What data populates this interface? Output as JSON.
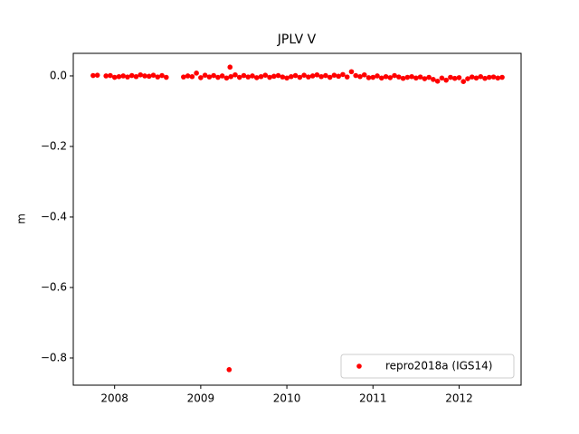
{
  "chart_data": {
    "type": "scatter",
    "title": "JPLV V",
    "y_label": "m",
    "x": [
      2007.75,
      2007.8,
      2007.9,
      2007.95,
      2008.0,
      2008.05,
      2008.1,
      2008.15,
      2008.2,
      2008.25,
      2008.3,
      2008.35,
      2008.4,
      2008.45,
      2008.5,
      2008.55,
      2008.6,
      2008.8,
      2008.85,
      2008.9,
      2008.95,
      2009.0,
      2009.05,
      2009.1,
      2009.15,
      2009.2,
      2009.25,
      2009.3,
      2009.33,
      2009.34,
      2009.35,
      2009.4,
      2009.45,
      2009.5,
      2009.55,
      2009.6,
      2009.65,
      2009.7,
      2009.75,
      2009.8,
      2009.85,
      2009.9,
      2009.95,
      2010.0,
      2010.05,
      2010.1,
      2010.15,
      2010.2,
      2010.25,
      2010.3,
      2010.35,
      2010.4,
      2010.45,
      2010.5,
      2010.55,
      2010.6,
      2010.65,
      2010.7,
      2010.75,
      2010.8,
      2010.85,
      2010.9,
      2010.95,
      2011.0,
      2011.05,
      2011.1,
      2011.15,
      2011.2,
      2011.25,
      2011.3,
      2011.35,
      2011.4,
      2011.45,
      2011.5,
      2011.55,
      2011.6,
      2011.65,
      2011.7,
      2011.75,
      2011.8,
      2011.85,
      2011.9,
      2011.95,
      2012.0,
      2012.05,
      2012.1,
      2012.15,
      2012.2,
      2012.25,
      2012.3,
      2012.35,
      2012.4,
      2012.45,
      2012.5
    ],
    "series": [
      {
        "name": "repro2018a (IGS14)",
        "color": "#ff0000",
        "values": [
          0.001,
          0.002,
          0.0,
          0.001,
          -0.004,
          -0.002,
          0.0,
          -0.003,
          0.001,
          -0.002,
          0.003,
          0.0,
          -0.001,
          0.002,
          -0.003,
          0.001,
          -0.004,
          -0.003,
          0.0,
          -0.002,
          0.008,
          -0.005,
          0.002,
          -0.003,
          0.001,
          -0.004,
          0.0,
          -0.006,
          -0.833,
          0.025,
          -0.002,
          0.003,
          -0.004,
          0.001,
          -0.003,
          0.0,
          -0.005,
          -0.002,
          0.002,
          -0.004,
          -0.001,
          0.001,
          -0.003,
          -0.006,
          -0.002,
          0.001,
          -0.004,
          0.002,
          -0.003,
          0.0,
          0.003,
          -0.002,
          0.001,
          -0.004,
          0.002,
          -0.001,
          0.004,
          -0.003,
          0.012,
          0.001,
          -0.002,
          0.003,
          -0.005,
          -0.004,
          0.0,
          -0.006,
          -0.002,
          -0.005,
          0.001,
          -0.003,
          -0.007,
          -0.004,
          -0.002,
          -0.006,
          -0.003,
          -0.008,
          -0.004,
          -0.01,
          -0.015,
          -0.006,
          -0.012,
          -0.004,
          -0.007,
          -0.005,
          -0.016,
          -0.008,
          -0.003,
          -0.006,
          -0.002,
          -0.007,
          -0.004,
          -0.003,
          -0.006,
          -0.004
        ]
      }
    ],
    "xlim": [
      2007.52,
      2012.72
    ],
    "xticks": [
      2008,
      2009,
      2010,
      2011,
      2012
    ],
    "ylim": [
      -0.877,
      0.064
    ],
    "yticks": [
      {
        "value": 0,
        "label": "0.0"
      },
      {
        "value": -0.2,
        "label": "−0.2"
      },
      {
        "value": -0.4,
        "label": "−0.4"
      },
      {
        "value": -0.6,
        "label": "−0.6"
      },
      {
        "value": -0.8,
        "label": "−0.8"
      }
    ],
    "legend": "lower right",
    "grid": false
  }
}
